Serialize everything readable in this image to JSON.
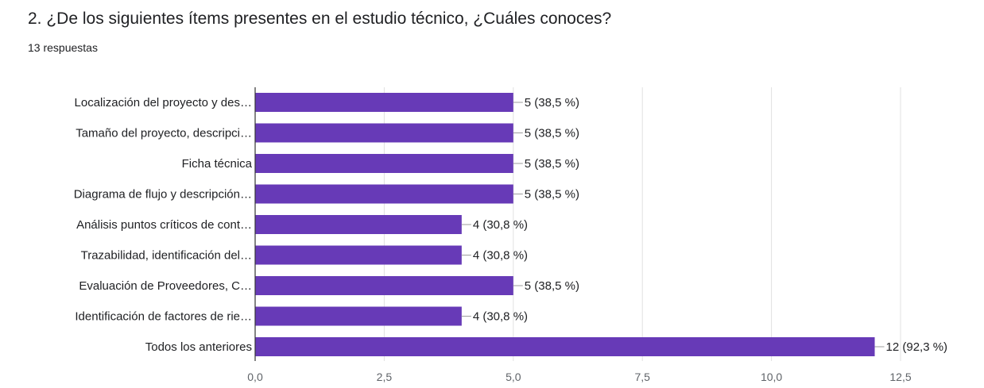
{
  "form": {
    "question": "2. ¿De los  siguientes ítems presentes en el estudio técnico, ¿Cuáles conoces?",
    "responses": "13 respuestas"
  },
  "colors": {
    "bar": "#673ab7",
    "grid": "#e0e0e0",
    "axis": "#333333",
    "leader": "#9e9e9e"
  },
  "chart_data": {
    "type": "bar",
    "orientation": "horizontal",
    "categories": [
      "Localización del proyecto y des…",
      "Tamaño del proyecto, descripci…",
      "Ficha técnica",
      "Diagrama de flujo y descripción…",
      "Análisis puntos críticos de cont…",
      "Trazabilidad, identificación del…",
      "Evaluación de Proveedores, C…",
      "Identificación de factores de rie…",
      "Todos los anteriores"
    ],
    "values": [
      5,
      5,
      5,
      5,
      4,
      4,
      5,
      4,
      12
    ],
    "data_labels": [
      "5 (38,5 %)",
      "5 (38,5 %)",
      "5 (38,5 %)",
      "5 (38,5 %)",
      "4 (30,8 %)",
      "4 (30,8 %)",
      "5 (38,5 %)",
      "4 (30,8 %)",
      "12 (92,3 %)"
    ],
    "xlim": [
      0,
      12.5
    ],
    "xticks": [
      "0,0",
      "2,5",
      "5,0",
      "7,5",
      "10,0",
      "12,5"
    ],
    "grid": true,
    "xlabel": "",
    "ylabel": ""
  }
}
